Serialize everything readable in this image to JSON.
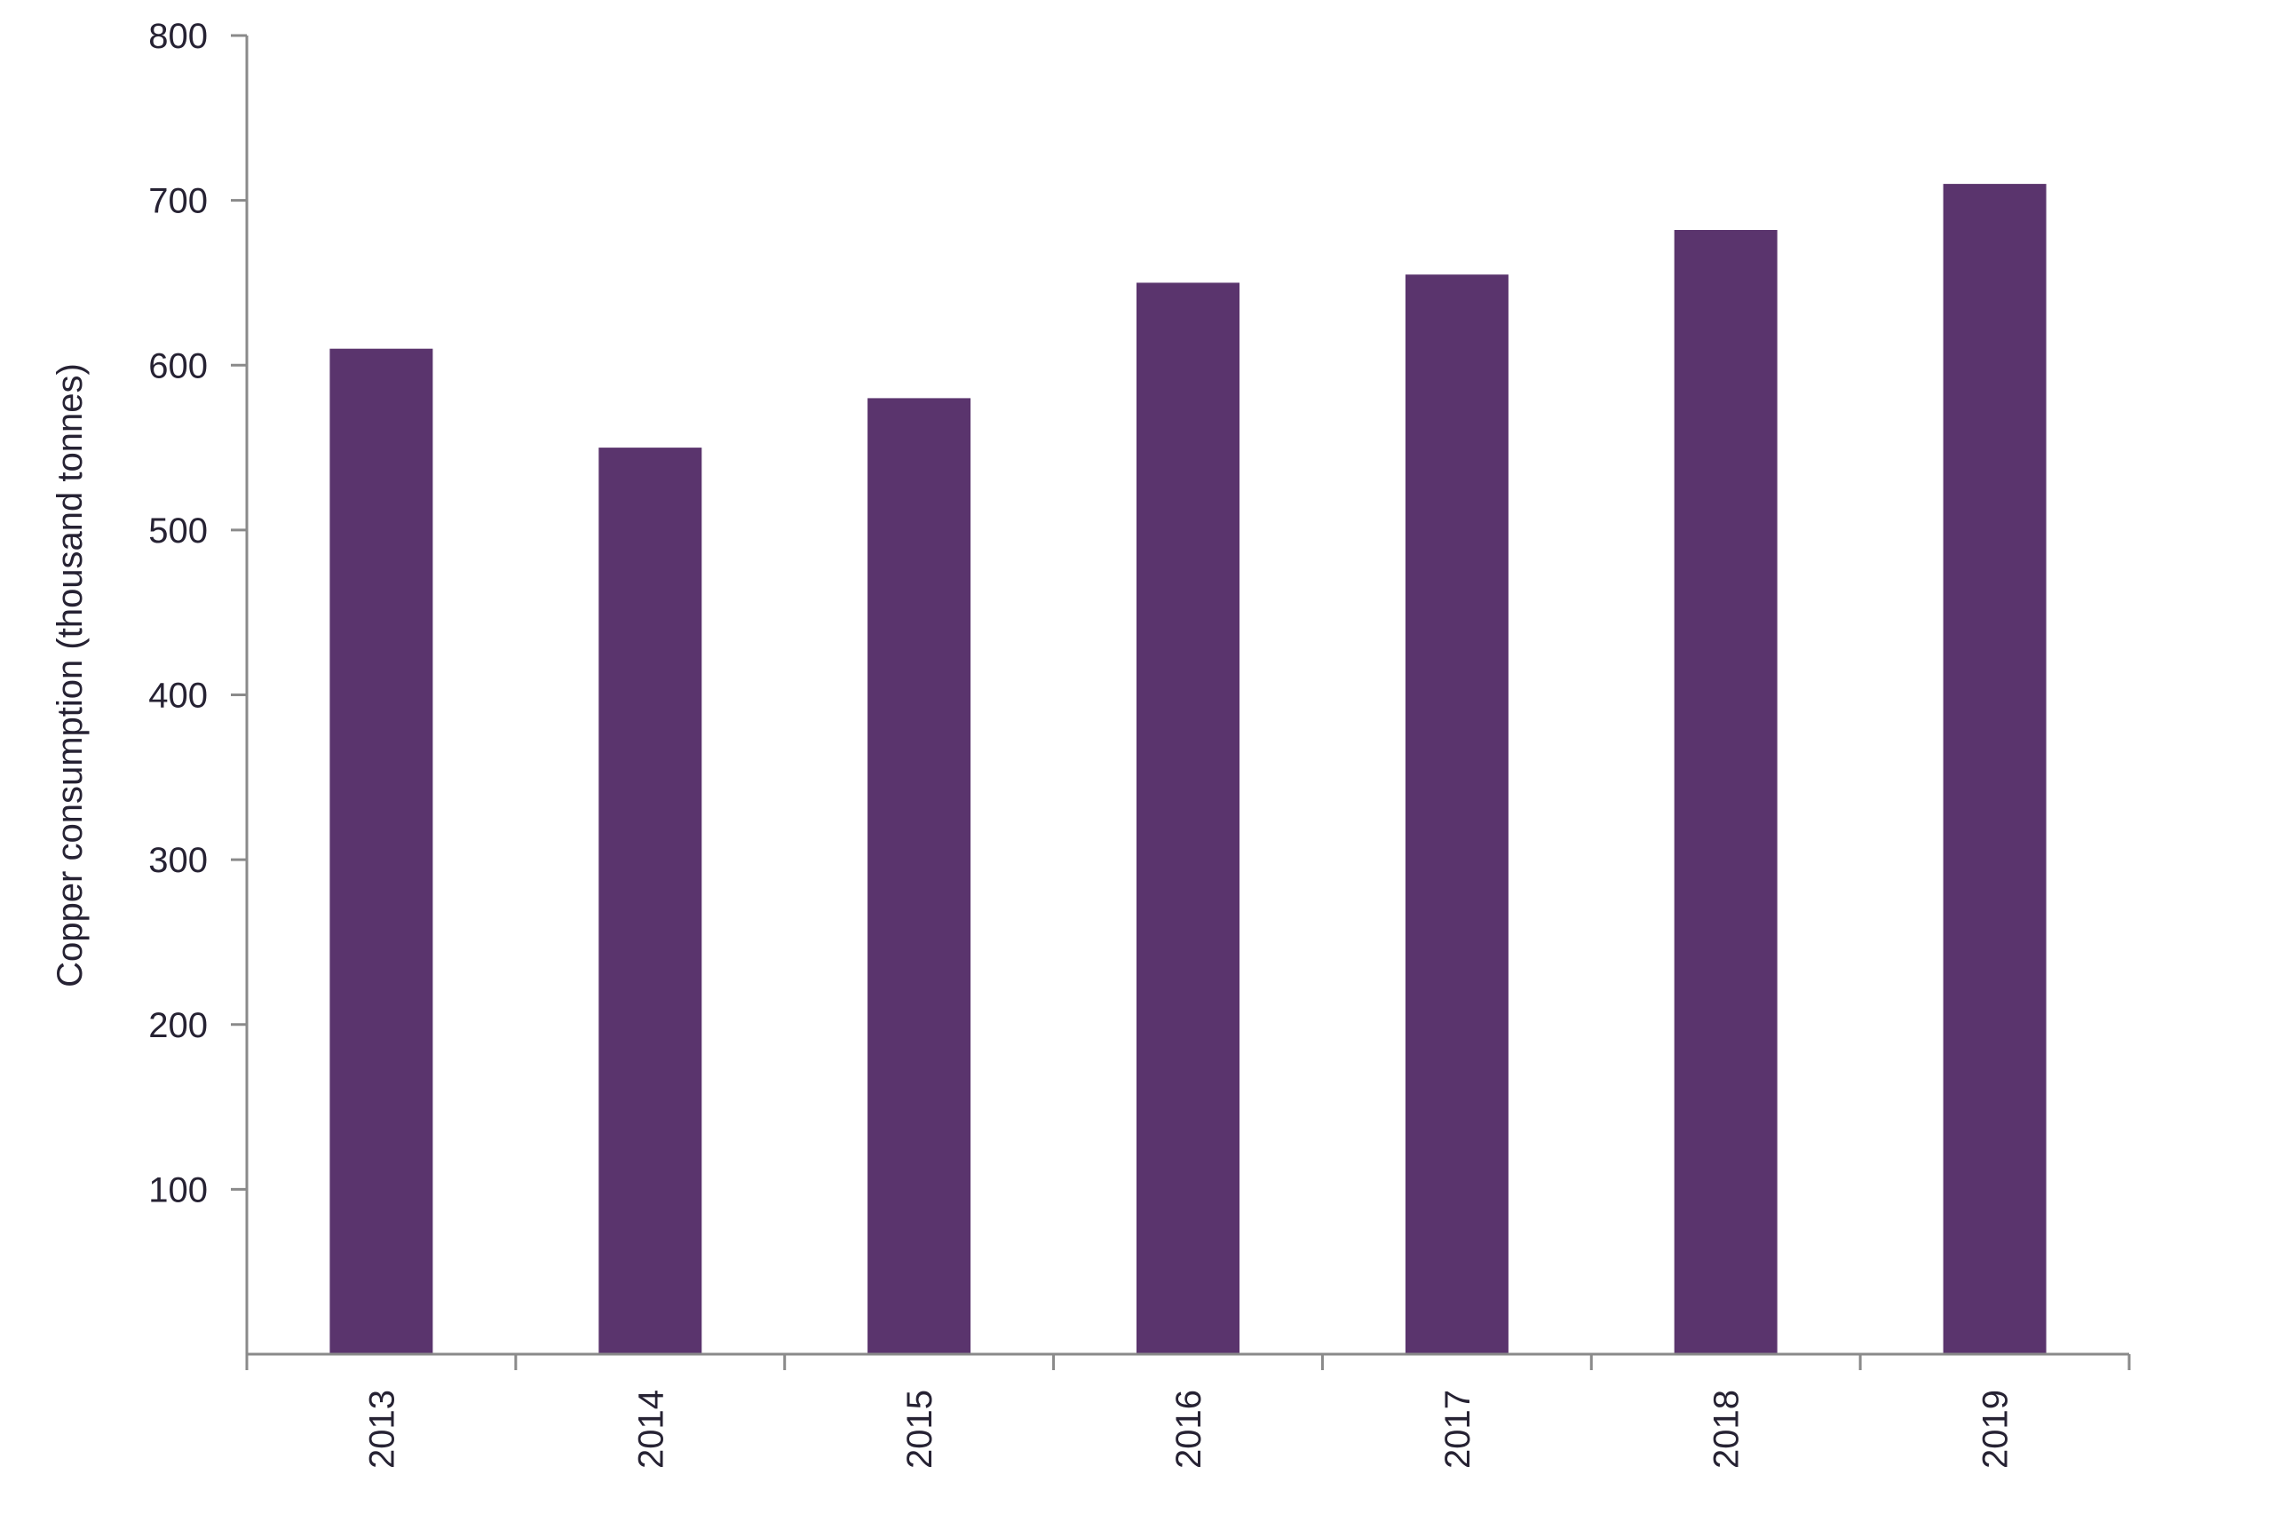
{
  "chart_data": {
    "type": "bar",
    "categories": [
      "2013",
      "2014",
      "2015",
      "2016",
      "2017",
      "2018",
      "2019"
    ],
    "values": [
      610,
      550,
      580,
      650,
      655,
      682,
      710
    ],
    "title": "",
    "xlabel": "",
    "ylabel": "Copper consumption (thousand tonnes)",
    "ylim": [
      0,
      800
    ],
    "yticks": [
      100,
      200,
      300,
      400,
      500,
      600,
      700,
      800
    ],
    "grid": false,
    "legend": "none",
    "colors": {
      "bar": "#5a346d",
      "axis": "#8a8a8a",
      "text": "#262233"
    }
  }
}
